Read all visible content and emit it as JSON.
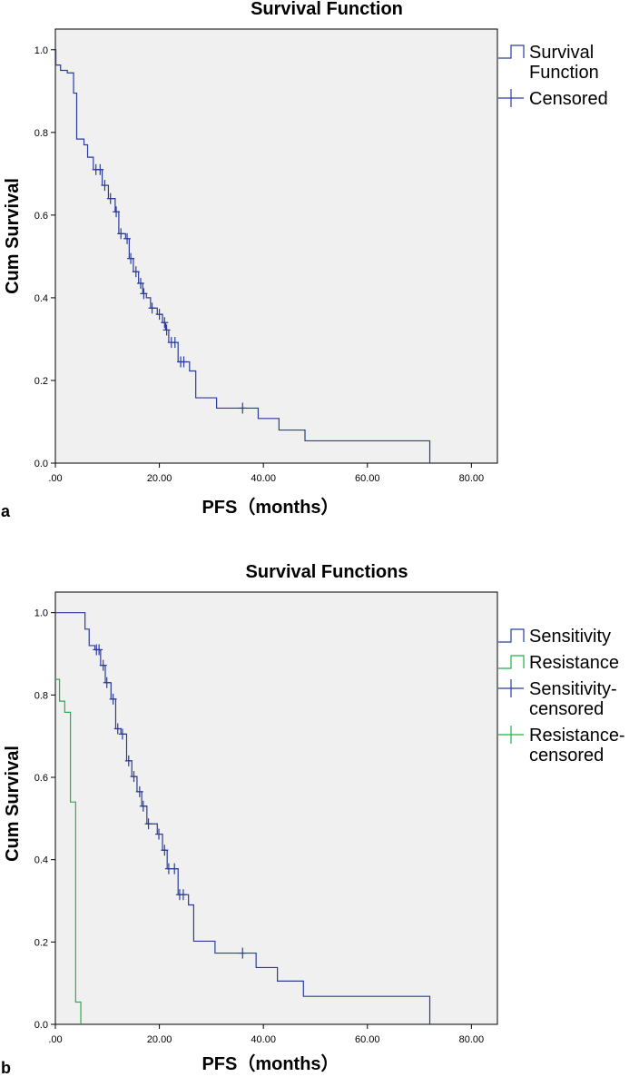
{
  "chart_data": [
    {
      "type": "line",
      "panel_label": "a",
      "title": "Survival Function",
      "xlabel": "PFS（months）",
      "ylabel": "Cum Survival",
      "xlim": [
        0,
        85
      ],
      "ylim": [
        0,
        1.05
      ],
      "x_ticks": [
        0,
        20,
        40,
        60,
        80
      ],
      "x_tick_labels": [
        ".00",
        "20.00",
        "40.00",
        "60.00",
        "80.00"
      ],
      "y_ticks": [
        0,
        0.2,
        0.4,
        0.6,
        0.8,
        1.0
      ],
      "y_tick_labels": [
        "0.0",
        "0.2",
        "0.4",
        "0.6",
        "0.8",
        "1.0"
      ],
      "grid": false,
      "background": "#f0f0f0",
      "legend_position": "outside-right-top",
      "legend": [
        {
          "label": "Survival Function",
          "lines": [
            "Survival",
            "Function"
          ],
          "kind": "step",
          "color": "#2a3c9c"
        },
        {
          "label": "Censored",
          "lines": [
            "Censored"
          ],
          "kind": "cross",
          "color": "#2a3c9c"
        }
      ],
      "series": [
        {
          "name": "Survival Function",
          "color": "#2a3c9c",
          "steps": [
            [
              0,
              1.0
            ],
            [
              0.1,
              0.963
            ],
            [
              1.0,
              0.95
            ],
            [
              2.3,
              0.944
            ],
            [
              3.5,
              0.895
            ],
            [
              4.1,
              0.784
            ],
            [
              5.5,
              0.77
            ],
            [
              6.2,
              0.74
            ],
            [
              7.3,
              0.71
            ],
            [
              9.0,
              0.672
            ],
            [
              10.2,
              0.64
            ],
            [
              11.5,
              0.608
            ],
            [
              12.2,
              0.555
            ],
            [
              13.5,
              0.543
            ],
            [
              14.2,
              0.495
            ],
            [
              15.0,
              0.463
            ],
            [
              16.0,
              0.435
            ],
            [
              16.8,
              0.41
            ],
            [
              17.5,
              0.4
            ],
            [
              18.3,
              0.375
            ],
            [
              19.6,
              0.36
            ],
            [
              20.6,
              0.34
            ],
            [
              21.2,
              0.322
            ],
            [
              21.8,
              0.292
            ],
            [
              23.6,
              0.245
            ],
            [
              25.1,
              0.245
            ],
            [
              25.8,
              0.223
            ],
            [
              27.0,
              0.158
            ],
            [
              31.0,
              0.133
            ],
            [
              39.0,
              0.108
            ],
            [
              43.0,
              0.08
            ],
            [
              48.0,
              0.054
            ],
            [
              72.0,
              0.054
            ]
          ],
          "end": 72.0
        }
      ],
      "censored": [
        {
          "series": "Survival Function",
          "points": [
            [
              7.8,
              0.71
            ],
            [
              8.6,
              0.71
            ],
            [
              9.5,
              0.672
            ],
            [
              10.6,
              0.64
            ],
            [
              11.7,
              0.608
            ],
            [
              12.6,
              0.555
            ],
            [
              13.8,
              0.543
            ],
            [
              14.5,
              0.495
            ],
            [
              15.5,
              0.463
            ],
            [
              16.4,
              0.435
            ],
            [
              17.0,
              0.41
            ],
            [
              18.6,
              0.375
            ],
            [
              20.0,
              0.36
            ],
            [
              21.0,
              0.34
            ],
            [
              21.4,
              0.322
            ],
            [
              22.3,
              0.292
            ],
            [
              23.0,
              0.292
            ],
            [
              24.1,
              0.245
            ],
            [
              24.7,
              0.245
            ],
            [
              36.0,
              0.133
            ]
          ]
        }
      ]
    },
    {
      "type": "line",
      "panel_label": "b",
      "title": "Survival Functions",
      "xlabel": "PFS（months）",
      "ylabel": "Cum Survival",
      "xlim": [
        0,
        85
      ],
      "ylim": [
        0,
        1.05
      ],
      "x_ticks": [
        0,
        20,
        40,
        60,
        80
      ],
      "x_tick_labels": [
        ".00",
        "20.00",
        "40.00",
        "60.00",
        "80.00"
      ],
      "y_ticks": [
        0,
        0.2,
        0.4,
        0.6,
        0.8,
        1.0
      ],
      "y_tick_labels": [
        "0.0",
        "0.2",
        "0.4",
        "0.6",
        "0.8",
        "1.0"
      ],
      "grid": false,
      "background": "#f0f0f0",
      "legend_position": "outside-right-top",
      "legend": [
        {
          "label": "Sensitivity",
          "lines": [
            "Sensitivity"
          ],
          "kind": "step",
          "color": "#2a3c9c"
        },
        {
          "label": "Resistance",
          "lines": [
            "Resistance"
          ],
          "kind": "step",
          "color": "#22b14c"
        },
        {
          "label": "Sensitivity-censored",
          "lines": [
            "Sensitivity-",
            "censored"
          ],
          "kind": "cross",
          "color": "#2a3c9c"
        },
        {
          "label": "Resistance-censored",
          "lines": [
            "Resistance-",
            "censored"
          ],
          "kind": "cross",
          "color": "#22b14c"
        }
      ],
      "series": [
        {
          "name": "Sensitivity",
          "color": "#2a3c9c",
          "steps": [
            [
              0,
              1.0
            ],
            [
              5.7,
              0.96
            ],
            [
              6.5,
              0.92
            ],
            [
              7.6,
              0.91
            ],
            [
              8.7,
              0.872
            ],
            [
              9.6,
              0.83
            ],
            [
              10.7,
              0.79
            ],
            [
              11.6,
              0.718
            ],
            [
              12.6,
              0.705
            ],
            [
              13.7,
              0.64
            ],
            [
              14.7,
              0.602
            ],
            [
              15.7,
              0.565
            ],
            [
              16.6,
              0.53
            ],
            [
              17.6,
              0.487
            ],
            [
              19.6,
              0.462
            ],
            [
              20.6,
              0.423
            ],
            [
              21.5,
              0.378
            ],
            [
              23.6,
              0.315
            ],
            [
              25.6,
              0.29
            ],
            [
              26.6,
              0.202
            ],
            [
              30.7,
              0.173
            ],
            [
              38.6,
              0.138
            ],
            [
              42.7,
              0.105
            ],
            [
              47.7,
              0.068
            ],
            [
              72.0,
              0.068
            ]
          ],
          "end": 72.0
        },
        {
          "name": "Resistance",
          "color": "#22b14c",
          "steps": [
            [
              0,
              0.838
            ],
            [
              0.8,
              0.785
            ],
            [
              1.8,
              0.758
            ],
            [
              2.9,
              0.54
            ],
            [
              3.9,
              0.054
            ],
            [
              4.9,
              0.0
            ]
          ],
          "end": 4.9
        }
      ],
      "censored": [
        {
          "series": "Sensitivity",
          "points": [
            [
              7.9,
              0.91
            ],
            [
              8.4,
              0.91
            ],
            [
              9.2,
              0.872
            ],
            [
              9.9,
              0.83
            ],
            [
              11.1,
              0.79
            ],
            [
              12.0,
              0.718
            ],
            [
              12.9,
              0.705
            ],
            [
              14.1,
              0.64
            ],
            [
              15.1,
              0.602
            ],
            [
              16.2,
              0.565
            ],
            [
              16.9,
              0.53
            ],
            [
              17.9,
              0.487
            ],
            [
              19.9,
              0.462
            ],
            [
              21.0,
              0.423
            ],
            [
              21.8,
              0.378
            ],
            [
              22.9,
              0.378
            ],
            [
              23.9,
              0.315
            ],
            [
              24.6,
              0.315
            ],
            [
              36.0,
              0.173
            ]
          ]
        },
        {
          "series": "Resistance",
          "points": []
        }
      ]
    }
  ]
}
